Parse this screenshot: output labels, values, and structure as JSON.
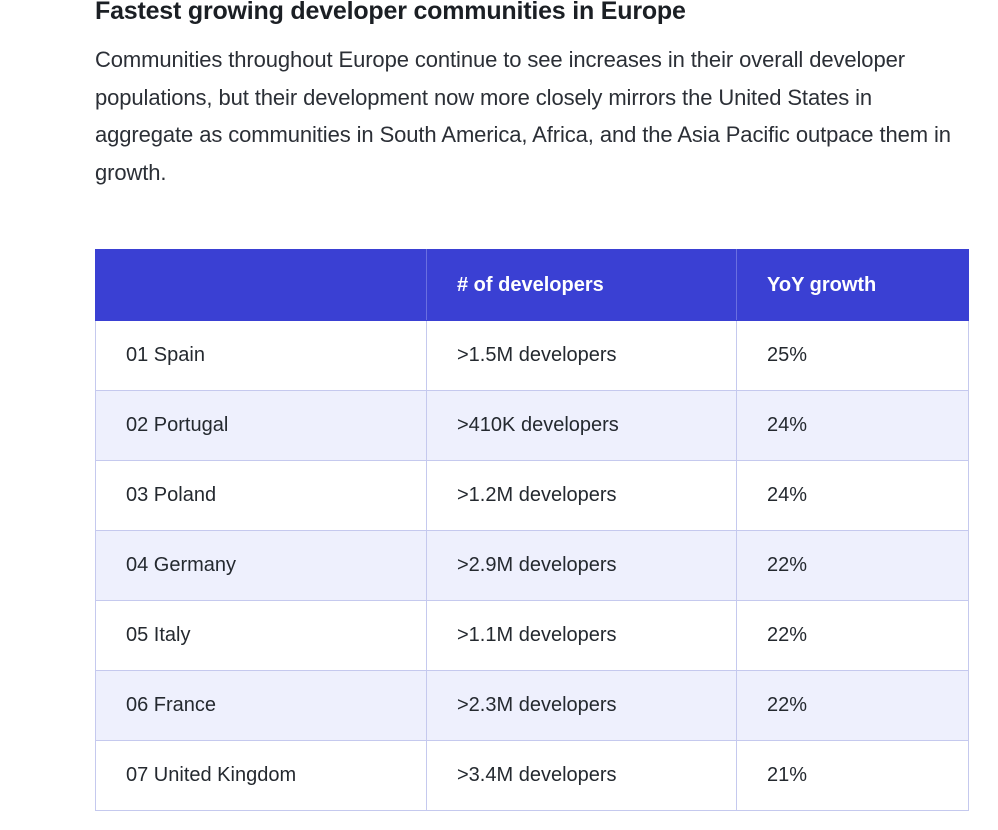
{
  "section": {
    "title": "Fastest growing developer communities in Europe",
    "intro": "Communities throughout Europe continue to see increases in their overall developer populations, but their development now more closely mirrors the United States in aggregate as communities in South America, Africa, and the Asia Pacific outpace them in growth."
  },
  "table": {
    "headers": [
      "",
      "# of developers",
      "YoY growth"
    ],
    "rows": [
      {
        "country": "01 Spain",
        "developers": ">1.5M developers",
        "growth": "25%"
      },
      {
        "country": "02 Portugal",
        "developers": ">410K developers",
        "growth": "24%"
      },
      {
        "country": "03 Poland",
        "developers": ">1.2M developers",
        "growth": "24%"
      },
      {
        "country": "04 Germany",
        "developers": ">2.9M developers",
        "growth": "22%"
      },
      {
        "country": "05 Italy",
        "developers": ">1.1M developers",
        "growth": "22%"
      },
      {
        "country": "06 France",
        "developers": ">2.3M developers",
        "growth": "22%"
      },
      {
        "country": "07 United Kingdom",
        "developers": ">3.4M developers",
        "growth": "21%"
      }
    ],
    "colors": {
      "header_bg": "#3a40d3",
      "alt_row_bg": "#eef0fd",
      "border": "#c5c9ee"
    }
  }
}
